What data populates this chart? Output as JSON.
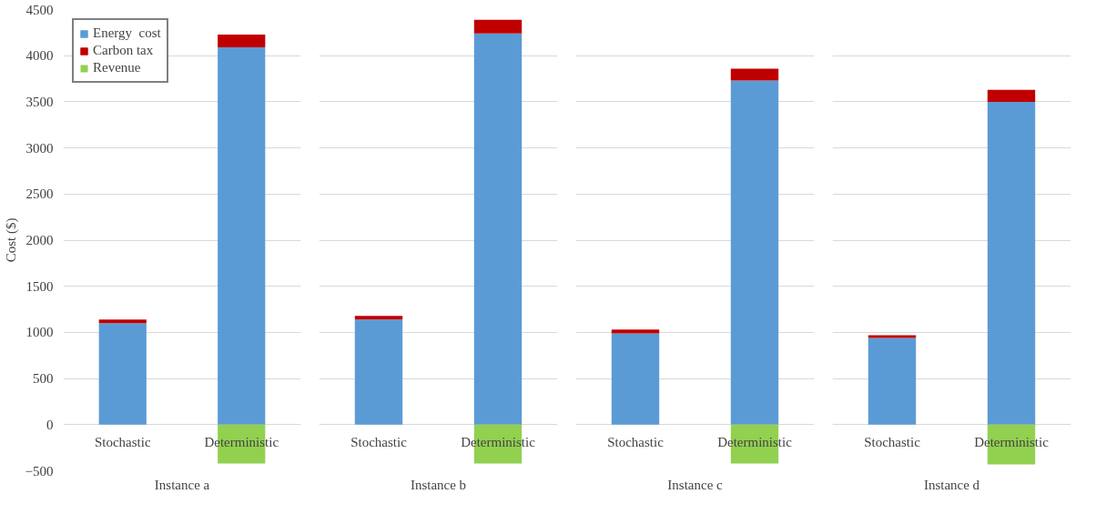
{
  "chart_data": [
    {
      "type": "bar",
      "stacked": true,
      "xlabel": "Instance a",
      "ylabel": "Cost ($)",
      "categories": [
        "Stochastic",
        "Deterministic"
      ],
      "ylim": [
        -500,
        4500
      ],
      "yticks": [
        -500,
        0,
        500,
        1000,
        1500,
        2000,
        2500,
        3000,
        3500,
        4000,
        4500
      ],
      "grid": "y",
      "legend": "top left",
      "series": [
        {
          "name": "Energy  cost",
          "color": "#5b9bd5",
          "values": [
            1100,
            4090
          ]
        },
        {
          "name": "Carbon tax",
          "color": "#c00000",
          "values": [
            40,
            140
          ]
        },
        {
          "name": "Revenue",
          "color": "#92d050",
          "values": [
            0,
            -420
          ]
        }
      ]
    },
    {
      "type": "bar",
      "stacked": true,
      "xlabel": "Instance b",
      "categories": [
        "Stochastic",
        "Deterministic"
      ],
      "ylim": [
        -500,
        4500
      ],
      "yticks": [
        -500,
        0,
        500,
        1000,
        1500,
        2000,
        2500,
        3000,
        3500,
        4000,
        4500
      ],
      "grid": "y",
      "tick_labels": "x",
      "series": [
        {
          "color": "#5b9bd5",
          "values": [
            1140,
            4240
          ]
        },
        {
          "color": "#c00000",
          "values": [
            40,
            150
          ]
        },
        {
          "color": "#92d050",
          "values": [
            0,
            -420
          ]
        }
      ]
    },
    {
      "type": "bar",
      "stacked": true,
      "xlabel": "Instance c",
      "categories": [
        "Stochastic",
        "Deterministic"
      ],
      "ylim": [
        -500,
        4500
      ],
      "yticks": [
        -500,
        0,
        500,
        1000,
        1500,
        2000,
        2500,
        3000,
        3500,
        4000,
        4500
      ],
      "grid": "y",
      "tick_labels": "x",
      "series": [
        {
          "color": "#5b9bd5",
          "values": [
            990,
            3730
          ]
        },
        {
          "color": "#c00000",
          "values": [
            40,
            130
          ]
        },
        {
          "color": "#92d050",
          "values": [
            0,
            -420
          ]
        }
      ]
    },
    {
      "type": "bar",
      "stacked": true,
      "xlabel": "Instance d",
      "categories": [
        "Stochastic",
        "Deterministic"
      ],
      "ylim": [
        -500,
        4500
      ],
      "yticks": [
        -500,
        0,
        500,
        1000,
        1500,
        2000,
        2500,
        3000,
        3500,
        4000,
        4500
      ],
      "grid": "y",
      "tick_labels": "x",
      "series": [
        {
          "color": "#5b9bd5",
          "values": [
            940,
            3500
          ]
        },
        {
          "color": "#c00000",
          "values": [
            30,
            130
          ]
        },
        {
          "color": "#92d050",
          "values": [
            0,
            -430
          ]
        }
      ]
    }
  ]
}
